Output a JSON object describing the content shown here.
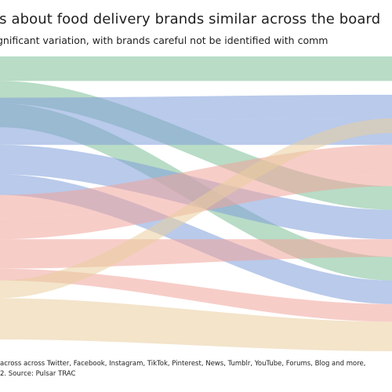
{
  "header": {
    "title": "ts about food delivery brands similar across the board",
    "subtitle": "gnificant variation, with brands careful not be identified with comm"
  },
  "footer": {
    "line1": "across across Twitter, Facebook, Instagram, TikTok, Pinterest, News, Tumblr, YouTube, Forums, Blog and more,",
    "line2": "2. Source: Pulsar TRAC"
  },
  "colors": {
    "green": "#7dbf98",
    "blue": "#7f9fdb",
    "red": "#f0a49b",
    "tan": "#e9cd9f"
  },
  "chart_data": {
    "type": "sankey",
    "title": "ts about food delivery brands similar across the board",
    "subtitle": "gnificant variation, with brands careful not be identified with comm",
    "flows": [
      {
        "color": "green",
        "from": [
          0.0,
          0.083
        ],
        "to": [
          0.0,
          0.083
        ]
      },
      {
        "color": "green",
        "from": [
          0.083,
          0.16
        ],
        "to": [
          0.44,
          0.52
        ]
      },
      {
        "color": "green",
        "from": [
          0.16,
          0.24
        ],
        "to": [
          0.68,
          0.76
        ]
      },
      {
        "color": "blue",
        "from": [
          0.14,
          0.22
        ],
        "to": [
          0.13,
          0.21
        ]
      },
      {
        "color": "blue",
        "from": [
          0.22,
          0.3
        ],
        "to": [
          0.21,
          0.3
        ]
      },
      {
        "color": "blue",
        "from": [
          0.3,
          0.4
        ],
        "to": [
          0.52,
          0.62
        ]
      },
      {
        "color": "blue",
        "from": [
          0.4,
          0.47
        ],
        "to": [
          0.76,
          0.84
        ]
      },
      {
        "color": "red",
        "from": [
          0.47,
          0.55
        ],
        "to": [
          0.3,
          0.4
        ]
      },
      {
        "color": "red",
        "from": [
          0.55,
          0.62
        ],
        "to": [
          0.4,
          0.44
        ]
      },
      {
        "color": "red",
        "from": [
          0.62,
          0.72
        ],
        "to": [
          0.62,
          0.68
        ]
      },
      {
        "color": "red",
        "from": [
          0.72,
          0.76
        ],
        "to": [
          0.84,
          0.9
        ]
      },
      {
        "color": "tan",
        "from": [
          0.76,
          0.82
        ],
        "to": [
          0.21,
          0.26
        ]
      },
      {
        "color": "tan",
        "from": [
          0.82,
          0.88
        ],
        "to": [
          0.9,
          0.96
        ]
      },
      {
        "color": "tan",
        "from": [
          0.88,
          0.96
        ],
        "to": [
          0.96,
          1.0
        ]
      }
    ]
  }
}
